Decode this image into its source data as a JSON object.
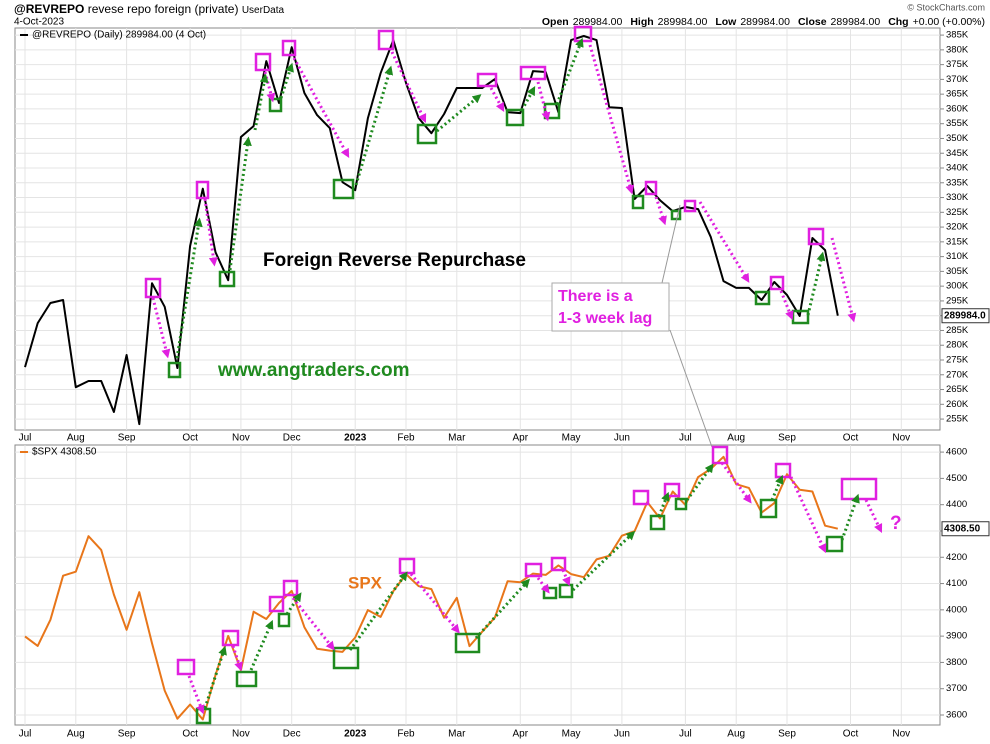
{
  "header": {
    "symbol": "@REVREPO",
    "description": "revese repo foreign (private)",
    "source": "UserData",
    "date": "4-Oct-2023",
    "ohlc": [
      {
        "label": "Open",
        "value": "289984.00"
      },
      {
        "label": "High",
        "value": "289984.00"
      },
      {
        "label": "Low",
        "value": "289984.00"
      },
      {
        "label": "Close",
        "value": "289984.00"
      },
      {
        "label": "Chg",
        "value": "+0.00 (+0.00%)"
      }
    ],
    "credit": "© StockCharts.com"
  },
  "chart_data": [
    {
      "type": "line",
      "grid": true,
      "annotations": [
        "Foreign Reverse Repurchase",
        "www.angtraders.com"
      ],
      "lag_note": [
        "There is a",
        "1-3 week lag"
      ],
      "categories": [
        "Jul",
        null,
        null,
        null,
        "Aug",
        null,
        null,
        null,
        "Sep",
        null,
        null,
        null,
        null,
        "Oct",
        null,
        null,
        null,
        "Nov",
        null,
        null,
        null,
        "Dec",
        null,
        null,
        null,
        null,
        "2023",
        null,
        null,
        null,
        "Feb",
        null,
        null,
        null,
        "Mar",
        null,
        null,
        null,
        null,
        "Apr",
        null,
        null,
        null,
        "May",
        null,
        null,
        null,
        "Jun",
        null,
        null,
        null,
        null,
        "Jul",
        null,
        null,
        null,
        "Aug",
        null,
        null,
        null,
        "Sep",
        null,
        null,
        null,
        null,
        "Oct",
        null,
        null,
        null,
        "Nov",
        null,
        null
      ],
      "series": [
        {
          "name": "@REVREPO (Daily) 289984.00 (4 Oct)",
          "color": "#000000",
          "last_label": "289984.0",
          "values": [
            272600,
            287500,
            294300,
            295300,
            265800,
            267900,
            267900,
            257400,
            276700,
            253300,
            301000,
            293000,
            272300,
            313600,
            333000,
            311500,
            302000,
            350500,
            354200,
            376200,
            362000,
            380900,
            365400,
            357900,
            353500,
            335200,
            332500,
            356900,
            372100,
            383300,
            368800,
            356900,
            351800,
            358300,
            367100,
            367100,
            367100,
            370100,
            358900,
            358600,
            372800,
            372500,
            358900,
            383300,
            384700,
            383300,
            360600,
            360300,
            329500,
            333900,
            329100,
            325400,
            326800,
            326100,
            316600,
            301700,
            299400,
            299400,
            295300,
            301400,
            297000,
            289900,
            316300,
            312200,
            289984,
            null,
            null,
            null,
            null,
            null,
            null,
            null
          ]
        }
      ],
      "ylim": [
        251300,
        387400
      ],
      "yticks": [
        {
          "value": 255000,
          "label": "255K"
        },
        {
          "value": 260000,
          "label": "260K"
        },
        {
          "value": 265000,
          "label": "265K"
        },
        {
          "value": 270000,
          "label": "270K"
        },
        {
          "value": 275000,
          "label": "275K"
        },
        {
          "value": 280000,
          "label": "280K"
        },
        {
          "value": 285000,
          "label": "285K"
        },
        {
          "value": 290000,
          "label": "290K"
        },
        {
          "value": 295000,
          "label": "295K"
        },
        {
          "value": 300000,
          "label": "300K"
        },
        {
          "value": 305000,
          "label": "305K"
        },
        {
          "value": 310000,
          "label": "310K"
        },
        {
          "value": 315000,
          "label": "315K"
        },
        {
          "value": 320000,
          "label": "320K"
        },
        {
          "value": 325000,
          "label": "325K"
        },
        {
          "value": 330000,
          "label": "330K"
        },
        {
          "value": 335000,
          "label": "335K"
        },
        {
          "value": 340000,
          "label": "340K"
        },
        {
          "value": 345000,
          "label": "345K"
        },
        {
          "value": 350000,
          "label": "350K"
        },
        {
          "value": 355000,
          "label": "355K"
        },
        {
          "value": 360000,
          "label": "360K"
        },
        {
          "value": 365000,
          "label": "365K"
        },
        {
          "value": 370000,
          "label": "370K"
        },
        {
          "value": 375000,
          "label": "375K"
        },
        {
          "value": 380000,
          "label": "380K"
        },
        {
          "value": 385000,
          "label": "385K"
        }
      ]
    },
    {
      "type": "line",
      "grid": true,
      "annotations": [
        "SPX",
        "?"
      ],
      "categories": [
        "Jul",
        null,
        null,
        null,
        "Aug",
        null,
        null,
        null,
        "Sep",
        null,
        null,
        null,
        null,
        "Oct",
        null,
        null,
        null,
        "Nov",
        null,
        null,
        null,
        "Dec",
        null,
        null,
        null,
        null,
        "2023",
        null,
        null,
        null,
        "Feb",
        null,
        null,
        null,
        "Mar",
        null,
        null,
        null,
        null,
        "Apr",
        null,
        null,
        null,
        "May",
        null,
        null,
        null,
        "Jun",
        null,
        null,
        null,
        null,
        "Jul",
        null,
        null,
        null,
        "Aug",
        null,
        null,
        null,
        "Sep",
        null,
        null,
        null,
        null,
        "Oct",
        null,
        null,
        null,
        "Nov",
        null,
        null
      ],
      "series": [
        {
          "name": "$SPX 4308.50",
          "color": "#e8761a",
          "last_label": "4308.50",
          "values": [
            3899,
            3863,
            3962,
            4130,
            4145,
            4280,
            4228,
            4058,
            3924,
            4067,
            3873,
            3693,
            3586,
            3640,
            3583,
            3752,
            3901,
            3771,
            3993,
            3965,
            4026,
            4072,
            3934,
            3852,
            3845,
            3840,
            3895,
            3999,
            3973,
            4071,
            4136,
            4090,
            4079,
            3970,
            4046,
            3862,
            3917,
            3971,
            4109,
            4105,
            4138,
            4133,
            4169,
            4136,
            4124,
            4192,
            4205,
            4282,
            4299,
            4410,
            4348,
            4450,
            4399,
            4505,
            4536,
            4582,
            4478,
            4464,
            4370,
            4406,
            4516,
            4457,
            4450,
            4320,
            4308.5,
            null,
            null,
            null,
            null,
            null,
            null,
            null
          ]
        }
      ],
      "ylim": [
        3562,
        4627
      ],
      "yticks": [
        3600,
        3700,
        3800,
        3900,
        4000,
        4100,
        4200,
        4300,
        4400,
        4500,
        4600
      ]
    }
  ]
}
